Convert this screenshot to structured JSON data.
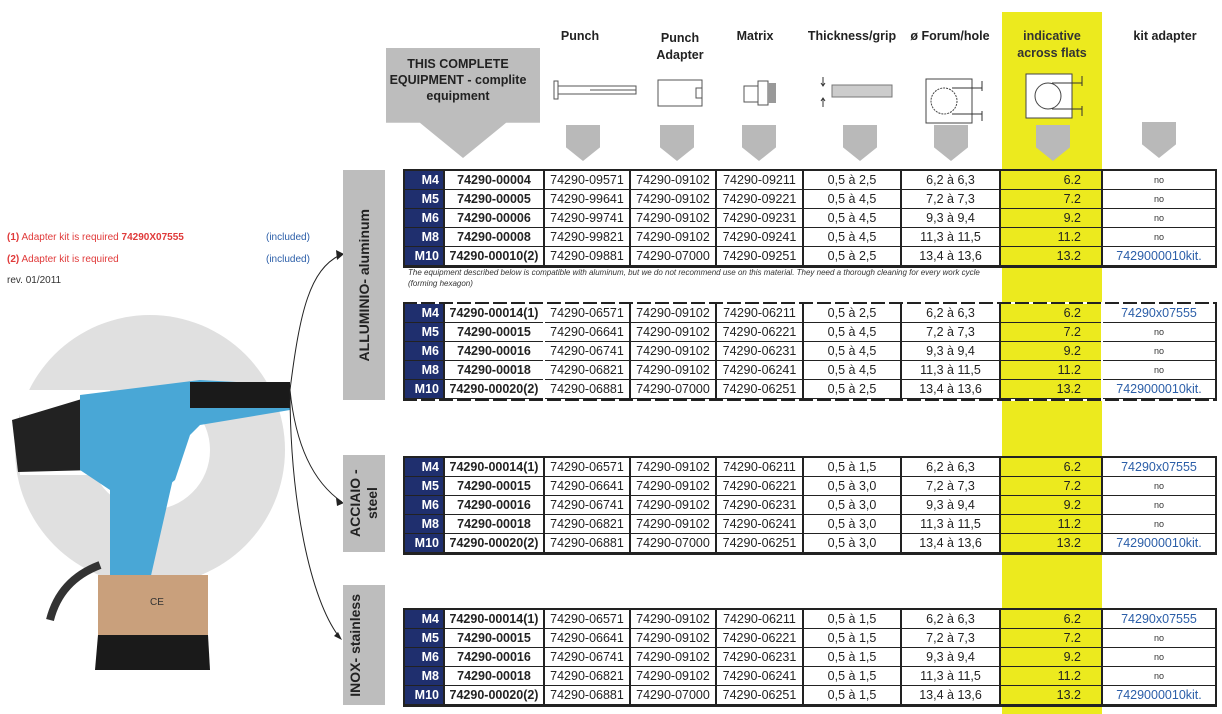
{
  "header": {
    "complete_equipment": "THIS COMPLETE EQUIPMENT - complite equipment",
    "columns": [
      "Punch",
      "Punch Adapter",
      "Matrix",
      "Thickness/grip",
      "ø Forum/hole",
      "indicative across flats",
      "kit adapter"
    ]
  },
  "notes": {
    "note1_num": "(1)",
    "note1_text": "Adapter kit is required",
    "note1_code": "74290X07555",
    "note1_included": "(included)",
    "note2_num": "(2)",
    "note2_text": "Adapter kit is required",
    "note2_included": "(included)",
    "revision": "rev. 01/2011"
  },
  "aluminum_note": "The equipment described below is compatible with aluminum, but we do not recommend use on this material. They need a thorough cleaning for every work cycle (forming hexagon)",
  "materials": [
    "ALLUMINIO- aluminum",
    "ACCIAIO - steel",
    "INOX- stainless"
  ],
  "colors": {
    "navy": "#1f2f6e",
    "highlight": "#ecea1e",
    "link": "#2b5ea8",
    "note_red": "#e03a3a"
  },
  "tables": [
    {
      "rows": [
        [
          "M4",
          "74290-00004",
          "74290-09571",
          "74290-09102",
          "74290-09211",
          "0,5 à 2,5",
          "6,2 à 6,3",
          "6.2",
          "no"
        ],
        [
          "M5",
          "74290-00005",
          "74290-99641",
          "74290-09102",
          "74290-09221",
          "0,5 à 4,5",
          "7,2 à 7,3",
          "7.2",
          "no"
        ],
        [
          "M6",
          "74290-00006",
          "74290-99741",
          "74290-09102",
          "74290-09231",
          "0,5 à 4,5",
          "9,3 à 9,4",
          "9.2",
          "no"
        ],
        [
          "M8",
          "74290-00008",
          "74290-99821",
          "74290-09102",
          "74290-09241",
          "0,5 à 4,5",
          "11,3 à 11,5",
          "11.2",
          "no"
        ],
        [
          "M10",
          "74290-00010(2)",
          "74290-09881",
          "74290-07000",
          "74290-09251",
          "0,5 à 2,5",
          "13,4 à 13,6",
          "13.2",
          "7429000010kit."
        ]
      ]
    },
    {
      "rows": [
        [
          "M4",
          "74290-00014(1)",
          "74290-06571",
          "74290-09102",
          "74290-06211",
          "0,5 à 2,5",
          "6,2 à 6,3",
          "6.2",
          "74290x07555"
        ],
        [
          "M5",
          "74290-00015",
          "74290-06641",
          "74290-09102",
          "74290-06221",
          "0,5 à 4,5",
          "7,2 à 7,3",
          "7.2",
          "no"
        ],
        [
          "M6",
          "74290-00016",
          "74290-06741",
          "74290-09102",
          "74290-06231",
          "0,5 à 4,5",
          "9,3 à 9,4",
          "9.2",
          "no"
        ],
        [
          "M8",
          "74290-00018",
          "74290-06821",
          "74290-09102",
          "74290-06241",
          "0,5 à 4,5",
          "11,3 à 11,5",
          "11.2",
          "no"
        ],
        [
          "M10",
          "74290-00020(2)",
          "74290-06881",
          "74290-07000",
          "74290-06251",
          "0,5 à 2,5",
          "13,4 à 13,6",
          "13.2",
          "7429000010kit."
        ]
      ]
    },
    {
      "rows": [
        [
          "M4",
          "74290-00014(1)",
          "74290-06571",
          "74290-09102",
          "74290-06211",
          "0,5 à 1,5",
          "6,2 à 6,3",
          "6.2",
          "74290x07555"
        ],
        [
          "M5",
          "74290-00015",
          "74290-06641",
          "74290-09102",
          "74290-06221",
          "0,5 à 3,0",
          "7,2 à 7,3",
          "7.2",
          "no"
        ],
        [
          "M6",
          "74290-00016",
          "74290-06741",
          "74290-09102",
          "74290-06231",
          "0,5 à 3,0",
          "9,3 à 9,4",
          "9.2",
          "no"
        ],
        [
          "M8",
          "74290-00018",
          "74290-06821",
          "74290-09102",
          "74290-06241",
          "0,5 à 3,0",
          "11,3 à 11,5",
          "11.2",
          "no"
        ],
        [
          "M10",
          "74290-00020(2)",
          "74290-06881",
          "74290-07000",
          "74290-06251",
          "0,5 à 3,0",
          "13,4 à 13,6",
          "13.2",
          "7429000010kit."
        ]
      ]
    },
    {
      "rows": [
        [
          "M4",
          "74290-00014(1)",
          "74290-06571",
          "74290-09102",
          "74290-06211",
          "0,5 à 1,5",
          "6,2 à 6,3",
          "6.2",
          "74290x07555"
        ],
        [
          "M5",
          "74290-00015",
          "74290-06641",
          "74290-09102",
          "74290-06221",
          "0,5 à 1,5",
          "7,2 à 7,3",
          "7.2",
          "no"
        ],
        [
          "M6",
          "74290-00016",
          "74290-06741",
          "74290-09102",
          "74290-06231",
          "0,5 à 1,5",
          "9,3 à 9,4",
          "9.2",
          "no"
        ],
        [
          "M8",
          "74290-00018",
          "74290-06821",
          "74290-09102",
          "74290-06241",
          "0,5 à 1,5",
          "11,3 à 11,5",
          "11.2",
          "no"
        ],
        [
          "M10",
          "74290-00020(2)",
          "74290-06881",
          "74290-07000",
          "74290-06251",
          "0,5 à 1,5",
          "13,4 à 13,6",
          "13.2",
          "7429000010kit."
        ]
      ]
    }
  ]
}
